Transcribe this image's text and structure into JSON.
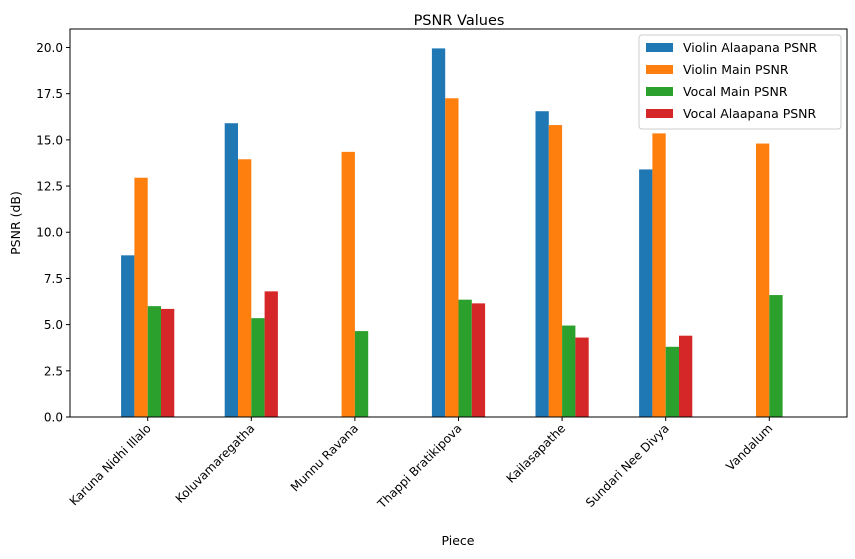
{
  "chart_data": {
    "type": "bar",
    "title": "PSNR Values",
    "xlabel": "Piece",
    "ylabel": "PSNR (dB)",
    "ylim": [
      0,
      21
    ],
    "yticks": [
      0.0,
      2.5,
      5.0,
      7.5,
      10.0,
      12.5,
      15.0,
      17.5,
      20.0
    ],
    "ytick_labels": [
      "0.0",
      "2.5",
      "5.0",
      "7.5",
      "10.0",
      "12.5",
      "15.0",
      "17.5",
      "20.0"
    ],
    "categories": [
      "Karuna Nidhi Illalo",
      "Koluvamaregatha",
      "Munnu Ravana",
      "Thappi Bratikipova",
      "Kailasapathe",
      "Sundari Nee Divya",
      "Vandalum"
    ],
    "series": [
      {
        "name": "Violin Alaapana PSNR",
        "color": "#1f77b4",
        "values": [
          8.75,
          15.9,
          null,
          19.95,
          16.55,
          13.4,
          null
        ]
      },
      {
        "name": "Violin Main PSNR",
        "color": "#ff7f0e",
        "values": [
          12.95,
          13.95,
          14.35,
          17.25,
          15.8,
          15.35,
          14.8
        ]
      },
      {
        "name": "Vocal Main PSNR",
        "color": "#2ca02c",
        "values": [
          6.0,
          5.35,
          4.65,
          6.35,
          4.95,
          3.8,
          6.6
        ]
      },
      {
        "name": "Vocal Alaapana PSNR",
        "color": "#d62728",
        "values": [
          5.85,
          6.8,
          null,
          6.15,
          4.3,
          4.4,
          null
        ]
      }
    ],
    "grid": false,
    "legend_position": "top-right"
  }
}
